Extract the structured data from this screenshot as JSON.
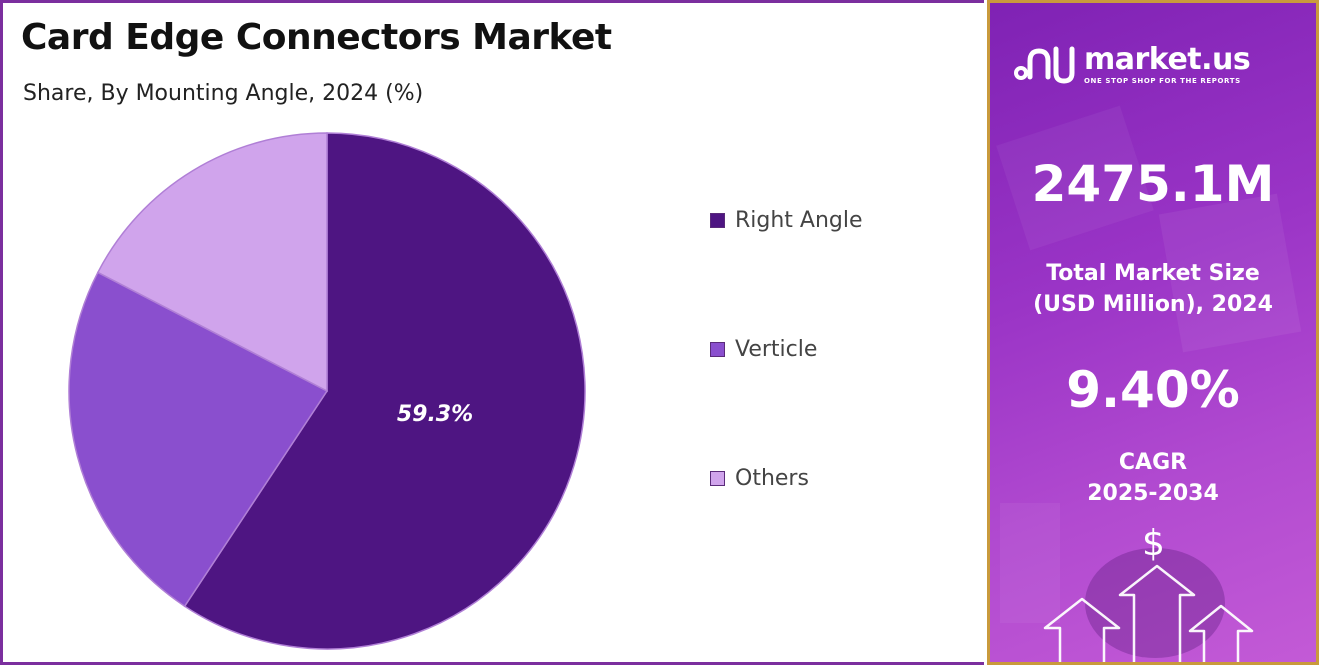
{
  "chart_data": {
    "type": "pie",
    "title": "Card Edge Connectors Market",
    "subtitle": "Share, By Mounting Angle, 2024 (%)",
    "categories": [
      "Right Angle",
      "Verticle",
      "Others"
    ],
    "values": [
      59.3,
      23.3,
      17.4
    ],
    "data_labels": [
      "59.3%",
      "",
      ""
    ],
    "colors": [
      "#4e1582",
      "#8a4fce",
      "#d0a4ec"
    ],
    "legend_position": "right",
    "start_angle": "12 o'clock, clockwise"
  },
  "sidebar": {
    "brand_name": "market.us",
    "brand_tagline": "ONE STOP SHOP FOR THE REPORTS",
    "market_size_value": "2475.1M",
    "market_size_label_line1": "Total Market Size",
    "market_size_label_line2": "(USD Million), 2024",
    "cagr_value": "9.40%",
    "cagr_label_line1": "CAGR",
    "cagr_label_line2": "2025-2034",
    "dollar_symbol": "$",
    "decor_icon": "rising-arrows-icon"
  }
}
